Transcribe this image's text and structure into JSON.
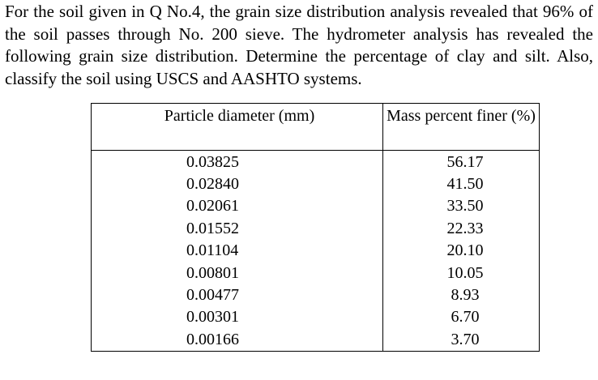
{
  "problem_text": "For the soil given in Q No.4, the grain size distribution analysis revealed that 96% of the soil passes through No. 200 sieve. The hydrometer analysis has revealed the following grain size distribution. Determine the percentage of clay and silt. Also, classify the soil using USCS and AASHTO systems.",
  "table": {
    "headers": [
      "Particle diameter (mm)",
      "Mass percent finer (%)"
    ],
    "rows": [
      {
        "diameter": "0.03825",
        "finer": "56.17"
      },
      {
        "diameter": "0.02840",
        "finer": "41.50"
      },
      {
        "diameter": "0.02061",
        "finer": "33.50"
      },
      {
        "diameter": "0.01552",
        "finer": "22.33"
      },
      {
        "diameter": "0.01104",
        "finer": "20.10"
      },
      {
        "diameter": "0.00801",
        "finer": "10.05"
      },
      {
        "diameter": "0.00477",
        "finer": "8.93"
      },
      {
        "diameter": "0.00301",
        "finer": "6.70"
      },
      {
        "diameter": "0.00166",
        "finer": "3.70"
      }
    ]
  }
}
